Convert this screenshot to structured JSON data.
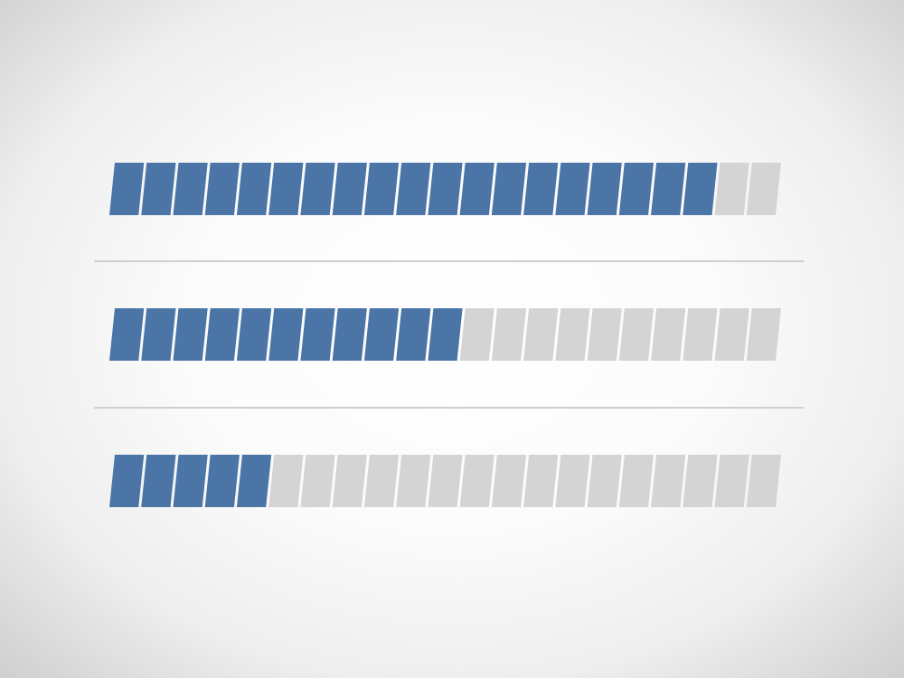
{
  "progress_bars": [
    {
      "filled_segments": 19,
      "total_segments": 21
    },
    {
      "filled_segments": 11,
      "total_segments": 21
    },
    {
      "filled_segments": 5,
      "total_segments": 21
    }
  ],
  "colors": {
    "filled": "#4a75a6",
    "empty": "#d4d4d4",
    "divider": "#cfcfcf"
  }
}
